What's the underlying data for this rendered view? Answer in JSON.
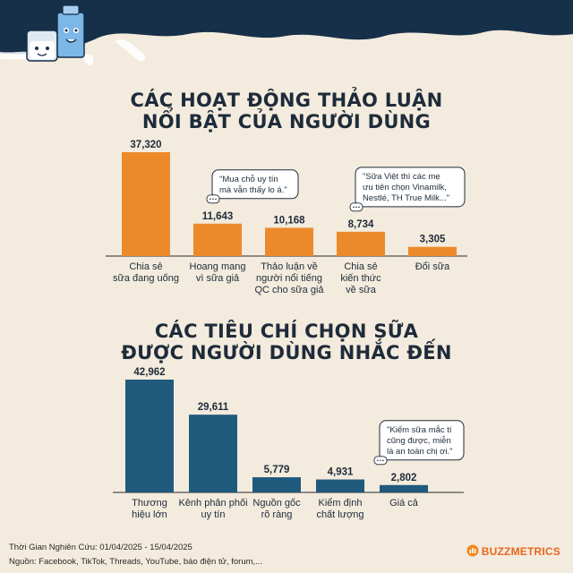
{
  "charts_titles": {
    "top": [
      "CÁC HOẠT ĐỘNG THẢO LUẬN",
      "NỔI BẬT CỦA NGƯỜI DÙNG"
    ],
    "bottom": [
      "CÁC TIÊU CHÍ CHỌN SỮA",
      "ĐƯỢC NGƯỜI DÙNG NHẮC ĐẾN"
    ]
  },
  "chart_data": [
    {
      "type": "bar",
      "title": "CÁC HOẠT ĐỘNG THẢO LUẬN NỔI BẬT CỦA NGƯỜI DÙNG",
      "categories": [
        [
          "Chia sẻ",
          "sữa đang uống"
        ],
        [
          "Hoang mang",
          "vì sữa giả"
        ],
        [
          "Thảo luận về",
          "người nổi tiếng",
          "QC cho sữa giả"
        ],
        [
          "Chia sẻ",
          "kiến thức",
          "về sữa"
        ],
        [
          "Đổi sữa"
        ]
      ],
      "values": [
        37320,
        11643,
        10168,
        8734,
        3305
      ],
      "value_labels": [
        "37,320",
        "11,643",
        "10,168",
        "8,734",
        "3,305"
      ],
      "color": "#ec8a2b",
      "xlabel": "",
      "ylabel": "",
      "ylim": [
        0,
        37320
      ],
      "annotations": [
        {
          "bar": 1,
          "lines": [
            "\"Mua chỗ uy tín",
            "mà vẫn thấy lo á.\""
          ]
        },
        {
          "bar": 3,
          "lines": [
            "\"Sữa Việt thì các mẹ",
            "ưu tiên chọn Vinamilk,",
            "Nestlé, TH True Milk...\""
          ]
        }
      ]
    },
    {
      "type": "bar",
      "title": "CÁC TIÊU CHÍ CHỌN SỮA ĐƯỢC NGƯỜI DÙNG NHẮC ĐẾN",
      "categories": [
        [
          "Thương",
          "hiệu lớn"
        ],
        [
          "Kênh phân phối",
          "uy tín"
        ],
        [
          "Nguồn gốc",
          "rõ ràng"
        ],
        [
          "Kiểm định",
          "chất lượng"
        ],
        [
          "Giá cả"
        ]
      ],
      "values": [
        42962,
        29611,
        5779,
        4931,
        2802
      ],
      "value_labels": [
        "42,962",
        "29,611",
        "5,779",
        "4,931",
        "2,802"
      ],
      "color": "#1f5a7d",
      "xlabel": "",
      "ylabel": "",
      "ylim": [
        0,
        42962
      ],
      "annotations": [
        {
          "bar": 4,
          "lines": [
            "\"Kiếm sữa mắc tí",
            "cũng được, miễn",
            "là an toàn chị ơi.\""
          ]
        }
      ]
    }
  ],
  "footer": {
    "period": "Thời Gian Nghiên Cứu: 01/04/2025 - 15/04/2025",
    "sources": "Nguồn: Facebook, TikTok, Threads, YouTube, báo điện tử, forum,..."
  },
  "brand": {
    "name": "BUZZMETRICS"
  },
  "colors": {
    "background": "#f3ebdd",
    "wave": "#17304a",
    "orange": "#ec8a2b",
    "blue": "#1f5a7d",
    "text": "#1e2b3a"
  },
  "icons": [
    "milk-carton-mascot-icon",
    "milk-glass-mascot-icon",
    "chat-bubble-icon",
    "buzzmetrics-logo-icon"
  ]
}
